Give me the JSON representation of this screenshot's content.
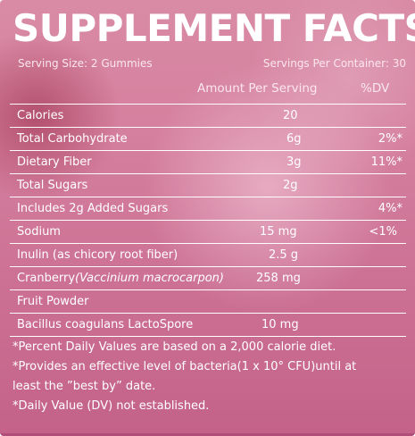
{
  "title": "SUPPLEMENT FACTS",
  "serving_size": "Serving Size: 2 Gummies",
  "servings_per_container": "Servings Per Container: 30",
  "header": {
    "amount_per_serving": "Amount Per Serving",
    "dv": "%DV"
  },
  "rows": [
    {
      "name": "Calories",
      "amount": "20",
      "dv": ""
    },
    {
      "name": "Total Carbohydrate",
      "amount": "6g",
      "dv": "2%*"
    },
    {
      "name": "Dietary Fiber",
      "amount": "3g",
      "dv": "11%*"
    },
    {
      "name": "Total Sugars",
      "amount": "2g",
      "dv": ""
    },
    {
      "name": "Includes 2g Added Sugars",
      "amount": "",
      "dv": "4%*"
    },
    {
      "name": "Sodium",
      "amount": "15 mg",
      "dv": "<1%"
    },
    {
      "name": "Inulin (as chicory root fiber)",
      "amount": "2.5 g",
      "dv": ""
    },
    {
      "name": "Cranberry",
      "name_italic": "(Vaccinium macrocarpon)",
      "amount": "258 mg",
      "dv": ""
    },
    {
      "name": "Fruit Powder",
      "amount": "",
      "dv": ""
    },
    {
      "name": "Bacillus coagulans LactoSpore",
      "amount": "10 mg",
      "dv": ""
    }
  ],
  "footnotes": [
    "*Percent Daily Values are based on a 2,000 calorie diet.",
    "*Provides an effective level of bacteria(1 x 10° CFU)until at\nleast the ”best by” date.",
    "*Daily Value (DV) not established."
  ],
  "colors": {
    "background": "#d47e9d",
    "text": "#ffffff",
    "rules": "#ffffff"
  }
}
